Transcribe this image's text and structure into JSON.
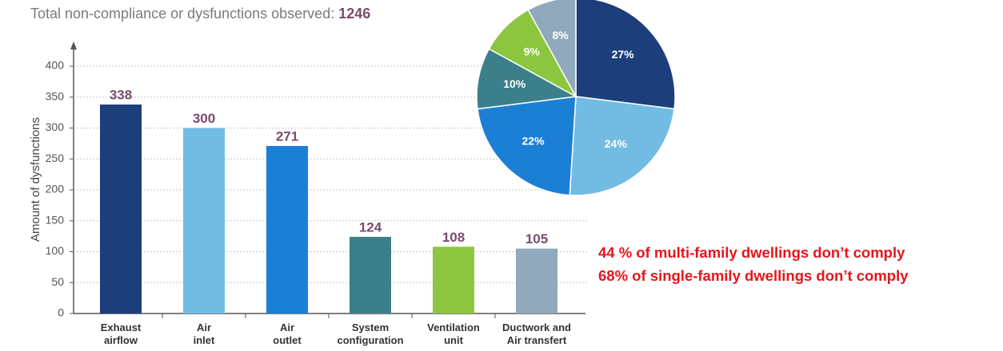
{
  "chart_data": [
    {
      "type": "bar",
      "title": "Total non-compliance or dysfunctions observed:",
      "total": 1246,
      "y_label": "Amount of dysfunctions",
      "categories": [
        "Exhaust\nairflow",
        "Air\ninlet",
        "Air\noutlet",
        "System\nconfiguration",
        "Ventilation\nunit",
        "Ductwork and\nAir transfert"
      ],
      "values": [
        338,
        300,
        271,
        124,
        108,
        105
      ],
      "colors": [
        "#1c3f7c",
        "#72bce4",
        "#1c7fd6",
        "#3b7f8a",
        "#8cc63f",
        "#90a9bc"
      ],
      "ylim": [
        0,
        440
      ],
      "yticks": [
        0,
        50,
        100,
        150,
        200,
        250,
        300,
        350,
        400
      ],
      "grid": true,
      "annotations": [
        "44 % of multi-family dwellings don’t comply",
        "68% of single-family dwellings don’t comply"
      ]
    },
    {
      "type": "pie",
      "values": [
        27,
        24,
        22,
        10,
        9,
        8
      ],
      "value_labels": [
        "27%",
        "24%",
        "22%",
        "10%",
        "9%",
        "8%"
      ],
      "colors": [
        "#1c3f7c",
        "#72bce4",
        "#1c7fd6",
        "#3b7f8a",
        "#8cc63f",
        "#90a9bc"
      ]
    }
  ]
}
